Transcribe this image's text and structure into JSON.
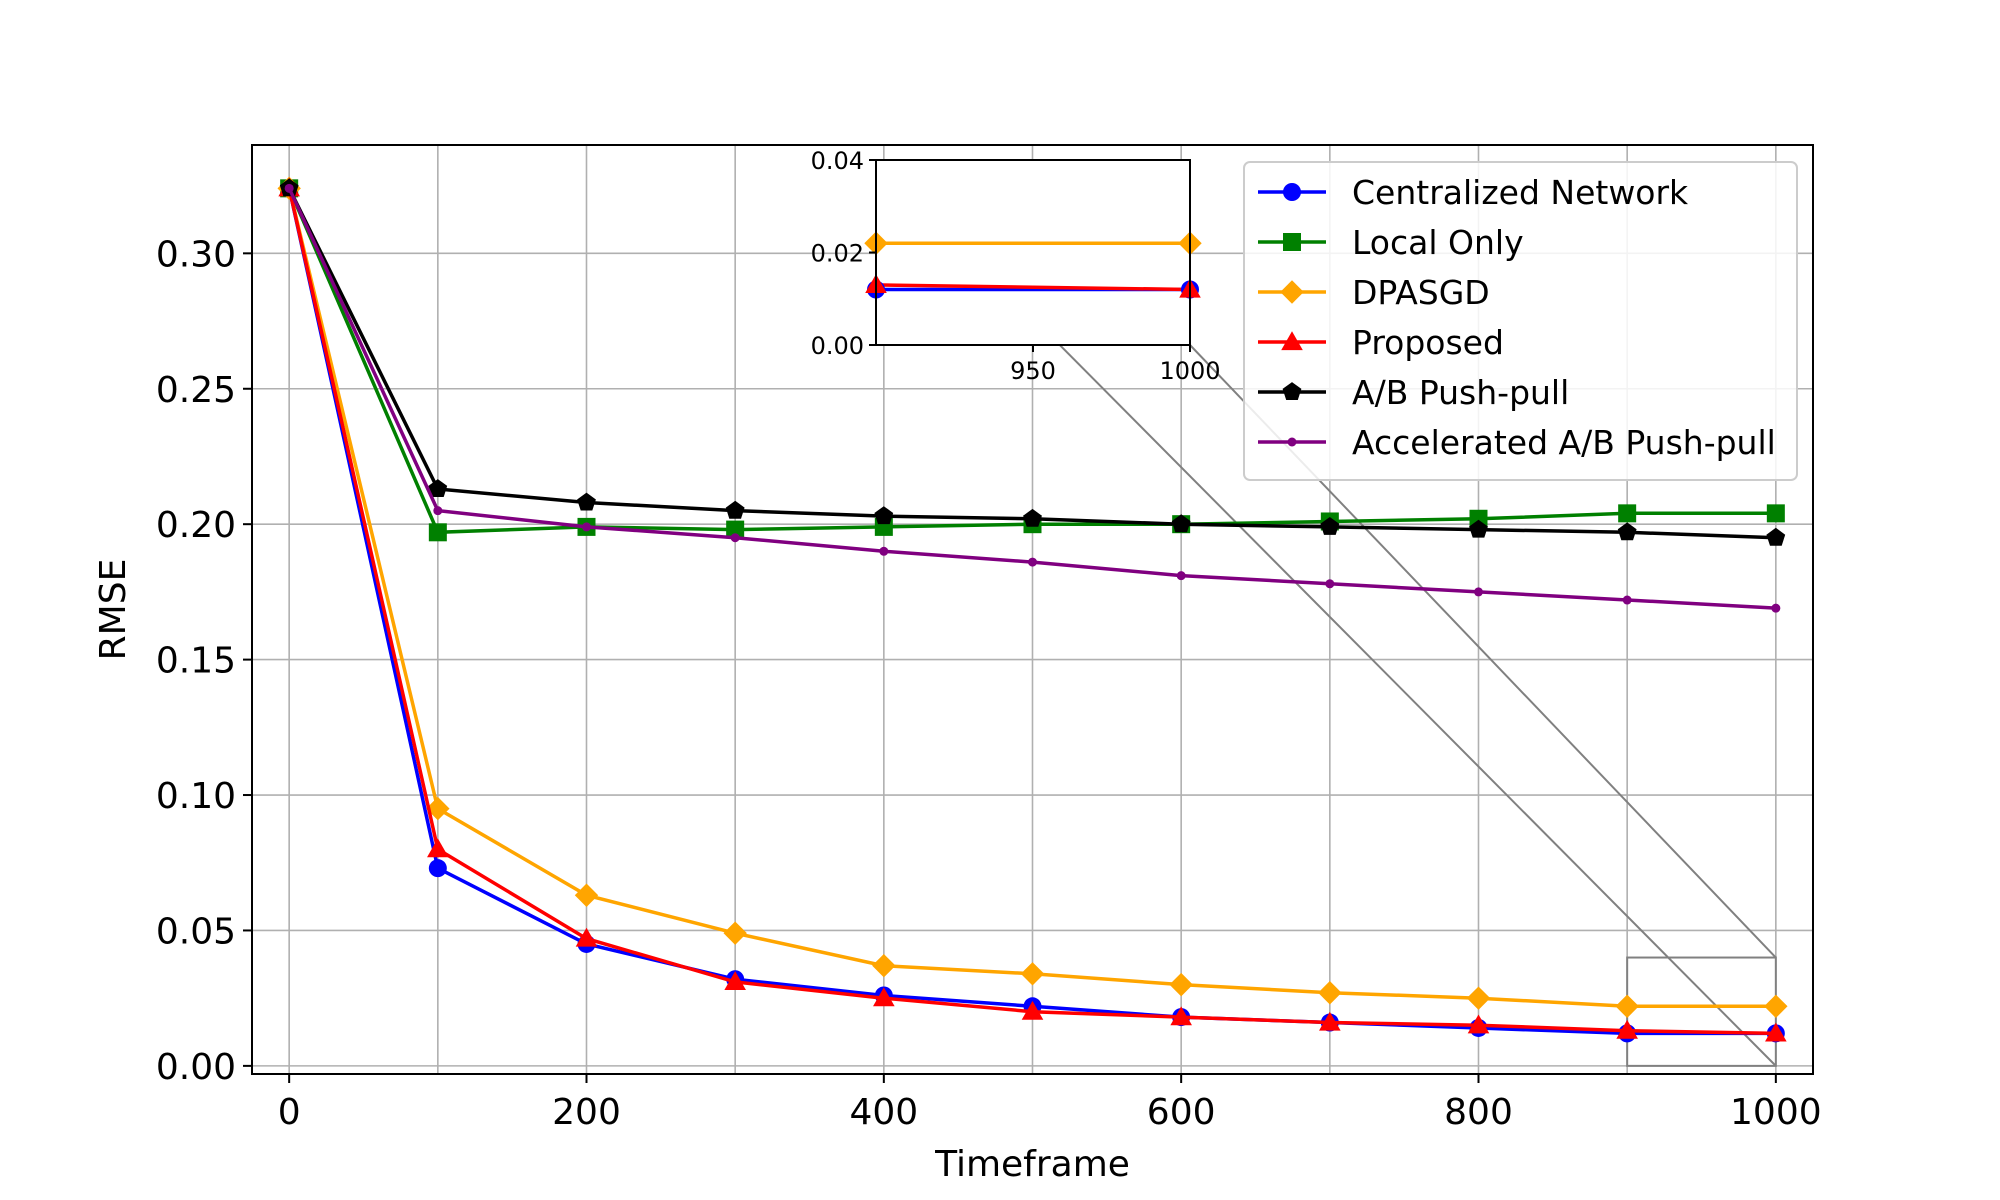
{
  "chart_data": {
    "type": "line",
    "xlabel": "Timeframe",
    "ylabel": "RMSE",
    "xlim": [
      -25,
      1025
    ],
    "ylim": [
      -0.003,
      0.34
    ],
    "xticks": [
      0,
      200,
      400,
      600,
      800,
      1000
    ],
    "xtick_labels": [
      "0",
      "200",
      "400",
      "600",
      "800",
      "1000"
    ],
    "yticks": [
      0.0,
      0.05,
      0.1,
      0.15,
      0.2,
      0.25,
      0.3
    ],
    "ytick_labels": [
      "0.00",
      "0.05",
      "0.10",
      "0.15",
      "0.20",
      "0.25",
      "0.30"
    ],
    "grid": true,
    "legend_position": "upper-right",
    "x": [
      0,
      100,
      200,
      300,
      400,
      500,
      600,
      700,
      800,
      900,
      1000
    ],
    "series": [
      {
        "name": "Centralized Network",
        "color": "#0000ff",
        "marker": "circle",
        "values": [
          0.324,
          0.073,
          0.045,
          0.032,
          0.026,
          0.022,
          0.018,
          0.016,
          0.014,
          0.012,
          0.012
        ]
      },
      {
        "name": "Local Only",
        "color": "#008000",
        "marker": "square",
        "values": [
          0.324,
          0.197,
          0.199,
          0.198,
          0.199,
          0.2,
          0.2,
          0.201,
          0.202,
          0.204,
          0.204
        ]
      },
      {
        "name": "DPASGD",
        "color": "#ffa500",
        "marker": "diamond",
        "values": [
          0.324,
          0.095,
          0.063,
          0.049,
          0.037,
          0.034,
          0.03,
          0.027,
          0.025,
          0.022,
          0.022
        ]
      },
      {
        "name": "Proposed",
        "color": "#ff0000",
        "marker": "triangle",
        "values": [
          0.324,
          0.08,
          0.047,
          0.031,
          0.025,
          0.02,
          0.018,
          0.016,
          0.015,
          0.013,
          0.012
        ]
      },
      {
        "name": "A/B Push-pull",
        "color": "#000000",
        "marker": "pentagon",
        "values": [
          0.324,
          0.213,
          0.208,
          0.205,
          0.203,
          0.202,
          0.2,
          0.199,
          0.198,
          0.197,
          0.195
        ]
      },
      {
        "name": "Accelerated A/B Push-pull",
        "color": "#800080",
        "marker": "dot",
        "values": [
          0.324,
          0.205,
          0.199,
          0.195,
          0.19,
          0.186,
          0.181,
          0.178,
          0.175,
          0.172,
          0.169
        ]
      }
    ],
    "inset": {
      "xlim": [
        900,
        1000
      ],
      "ylim": [
        0.0,
        0.04
      ],
      "xticks": [
        950,
        1000
      ],
      "xtick_labels": [
        "950",
        "1000"
      ],
      "yticks": [
        0.0,
        0.02,
        0.04
      ],
      "ytick_labels": [
        "0.00",
        "0.02",
        "0.04"
      ],
      "zoom_region_x": [
        900,
        1000
      ],
      "zoom_region_y": [
        0.0,
        0.04
      ]
    }
  }
}
